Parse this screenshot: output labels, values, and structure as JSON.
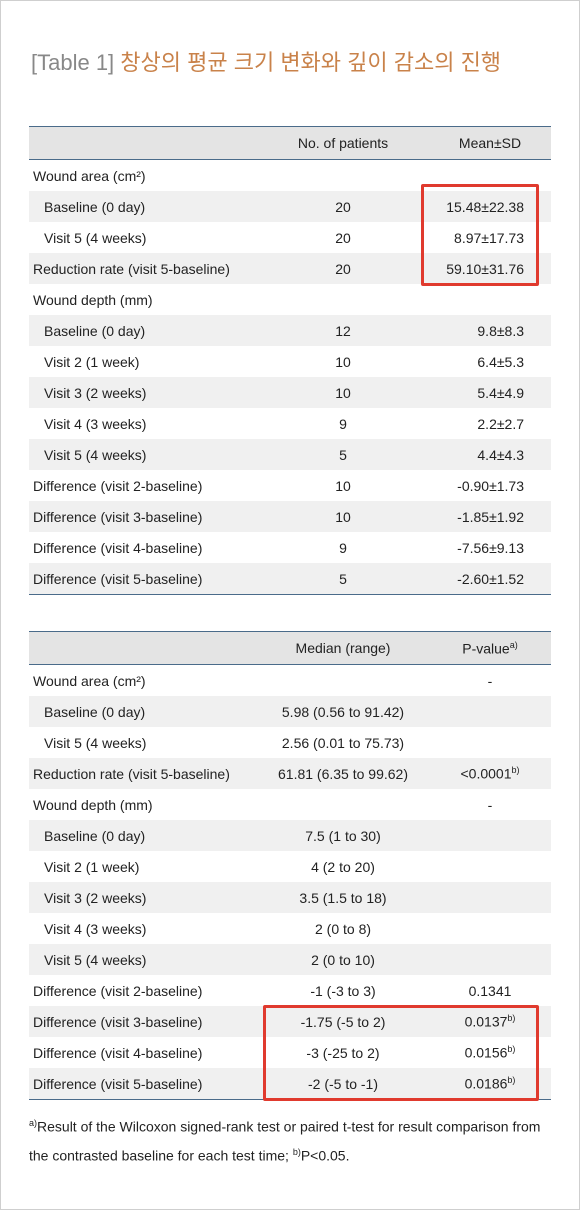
{
  "title": {
    "label": "[Table 1]",
    "text": "창상의 평균 크기 변화와 깊이 감소의 진행"
  },
  "table1": {
    "header": {
      "col2": "No. of patients",
      "col3": "Mean±SD"
    },
    "rows": [
      {
        "label": "Wound area (cm²)"
      },
      {
        "label": "Baseline (0 day)",
        "indent": true,
        "n": 20,
        "value": "15.48±22.38"
      },
      {
        "label": "Visit 5 (4 weeks)",
        "indent": true,
        "n": 20,
        "value": "8.97±17.73"
      },
      {
        "label": "Reduction rate (visit 5-baseline)",
        "n": 20,
        "value": "59.10±31.76"
      },
      {
        "label": "Wound depth (mm)"
      },
      {
        "label": "Baseline (0 day)",
        "indent": true,
        "n": 12,
        "value": "9.8±8.3"
      },
      {
        "label": "Visit 2 (1 week)",
        "indent": true,
        "n": 10,
        "value": "6.4±5.3"
      },
      {
        "label": "Visit 3 (2 weeks)",
        "indent": true,
        "n": 10,
        "value": "5.4±4.9"
      },
      {
        "label": "Visit 4 (3 weeks)",
        "indent": true,
        "n": 9,
        "value": "2.2±2.7"
      },
      {
        "label": "Visit 5 (4 weeks)",
        "indent": true,
        "n": 5,
        "value": "4.4±4.3"
      },
      {
        "label": "Difference (visit 2-baseline)",
        "n": 10,
        "value": "-0.90±1.73"
      },
      {
        "label": "Difference (visit 3-baseline)",
        "n": 10,
        "value": "-1.85±1.92"
      },
      {
        "label": "Difference (visit 4-baseline)",
        "n": 9,
        "value": "-7.56±9.13"
      },
      {
        "label": "Difference (visit 5-baseline)",
        "n": 5,
        "value": "-2.60±1.52"
      }
    ]
  },
  "table2": {
    "header": {
      "col2": "Median (range)",
      "col3": {
        "text": "P-value",
        "note": "a)"
      }
    },
    "rows": [
      {
        "label": "Wound area (cm²)",
        "p": "-"
      },
      {
        "label": "Baseline (0 day)",
        "indent": true,
        "median": "5.98 (0.56 to 91.42)"
      },
      {
        "label": "Visit 5 (4 weeks)",
        "indent": true,
        "median": "2.56 (0.01 to 75.73)"
      },
      {
        "label": "Reduction rate (visit 5-baseline)",
        "median": "61.81 (6.35 to 99.62)",
        "p": {
          "text": "<0.0001",
          "note": "b)"
        }
      },
      {
        "label": "Wound depth (mm)",
        "p": "-"
      },
      {
        "label": "Baseline (0 day)",
        "indent": true,
        "median": "7.5 (1 to 30)"
      },
      {
        "label": "Visit 2 (1 week)",
        "indent": true,
        "median": "4 (2 to 20)"
      },
      {
        "label": "Visit 3 (2 weeks)",
        "indent": true,
        "median": "3.5 (1.5 to 18)"
      },
      {
        "label": "Visit 4 (3 weeks)",
        "indent": true,
        "median": "2 (0 to 8)"
      },
      {
        "label": "Visit 5 (4 weeks)",
        "indent": true,
        "median": "2 (0 to 10)"
      },
      {
        "label": "Difference (visit 2-baseline)",
        "median": "-1 (-3 to 3)",
        "p": "0.1341"
      },
      {
        "label": "Difference (visit 3-baseline)",
        "median": "-1.75 (-5 to 2)",
        "p": {
          "text": "0.0137",
          "note": "b)"
        }
      },
      {
        "label": "Difference (visit 4-baseline)",
        "median": "-3 (-25 to 2)",
        "p": {
          "text": "0.0156",
          "note": "b)"
        }
      },
      {
        "label": "Difference (visit 5-baseline)",
        "median": "-2 (-5 to -1)",
        "p": {
          "text": "0.0186",
          "note": "b)"
        }
      }
    ]
  },
  "footnote": {
    "note1": "a)",
    "text1": "Result of the Wilcoxon signed-rank test or paired t-test for result comparison from the contrasted baseline for each test time; ",
    "note2": "b)",
    "text2": "P<0.05."
  }
}
